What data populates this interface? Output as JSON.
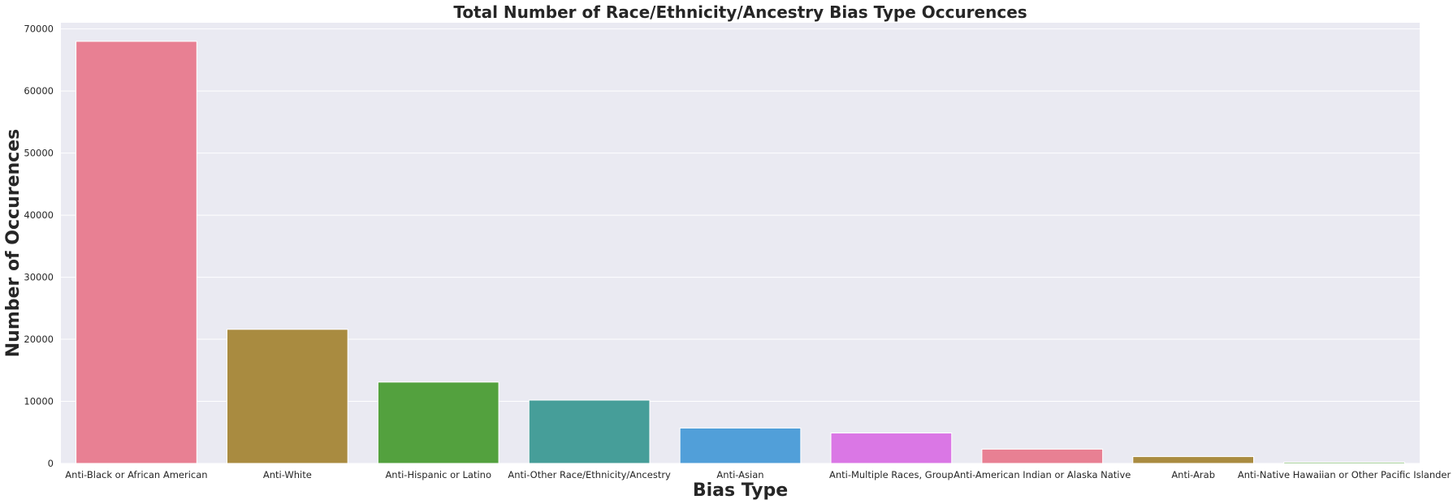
{
  "chart_data": {
    "type": "bar",
    "title": "Total Number of Race/Ethnicity/Ancestry Bias Type Occurences",
    "xlabel": "Bias Type",
    "ylabel": "Number of Occurences",
    "categories": [
      "Anti-Black or African American",
      "Anti-White",
      "Anti-Hispanic or Latino",
      "Anti-Other Race/Ethnicity/Ancestry",
      "Anti-Asian",
      "Anti-Multiple Races, Group",
      "Anti-American Indian or Alaska Native",
      "Anti-Arab",
      "Anti-Native Hawaiian or Other Pacific Islander"
    ],
    "values": [
      68000,
      21600,
      13100,
      10200,
      5700,
      4900,
      2300,
      1100,
      200
    ],
    "colors": [
      "#e88093",
      "#a98b40",
      "#53a13e",
      "#469e99",
      "#519fd9",
      "#da77e5",
      "#e88093",
      "#a98b40",
      "#53a13e"
    ],
    "ylim": [
      0,
      71000
    ],
    "yticks": [
      0,
      10000,
      20000,
      30000,
      40000,
      50000,
      60000,
      70000
    ],
    "grid": true,
    "legend": "none"
  },
  "style": {
    "plot_background": "#eaeaf2",
    "grid_color": "#ffffff"
  }
}
